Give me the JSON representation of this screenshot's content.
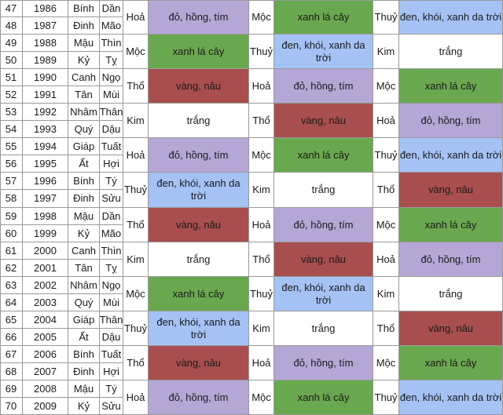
{
  "colors": {
    "do_hong_tim": "#b4a7d6",
    "xanh_la_cay": "#6aa84f",
    "den_khoi_xanh_da_troi": "#a4c2f4",
    "vang_nau": "#a84e4e",
    "trang": "#ffffff"
  },
  "rows": [
    {
      "no": "47",
      "year": "1986",
      "can": "Bính",
      "chi": "Dần"
    },
    {
      "no": "48",
      "year": "1987",
      "can": "Đinh",
      "chi": "Mão"
    },
    {
      "no": "49",
      "year": "1988",
      "can": "Mậu",
      "chi": "Thìn"
    },
    {
      "no": "50",
      "year": "1989",
      "can": "Kỷ",
      "chi": "Tỵ"
    },
    {
      "no": "51",
      "year": "1990",
      "can": "Canh",
      "chi": "Ngọ"
    },
    {
      "no": "52",
      "year": "1991",
      "can": "Tân",
      "chi": "Mùi"
    },
    {
      "no": "53",
      "year": "1992",
      "can": "Nhâm",
      "chi": "Thân"
    },
    {
      "no": "54",
      "year": "1993",
      "can": "Quý",
      "chi": "Dậu"
    },
    {
      "no": "55",
      "year": "1994",
      "can": "Giáp",
      "chi": "Tuất"
    },
    {
      "no": "56",
      "year": "1995",
      "can": "Ất",
      "chi": "Hợi"
    },
    {
      "no": "57",
      "year": "1996",
      "can": "Bính",
      "chi": "Tý"
    },
    {
      "no": "58",
      "year": "1997",
      "can": "Đinh",
      "chi": "Sửu"
    },
    {
      "no": "59",
      "year": "1998",
      "can": "Mậu",
      "chi": "Dần"
    },
    {
      "no": "60",
      "year": "1999",
      "can": "Kỷ",
      "chi": "Mão"
    },
    {
      "no": "61",
      "year": "2000",
      "can": "Canh",
      "chi": "Thìn"
    },
    {
      "no": "62",
      "year": "2001",
      "can": "Tân",
      "chi": "Tỵ"
    },
    {
      "no": "63",
      "year": "2002",
      "can": "Nhâm",
      "chi": "Ngọ"
    },
    {
      "no": "64",
      "year": "2003",
      "can": "Quý",
      "chi": "Mùi"
    },
    {
      "no": "65",
      "year": "2004",
      "can": "Giáp",
      "chi": "Thân"
    },
    {
      "no": "66",
      "year": "2005",
      "can": "Ất",
      "chi": "Dậu"
    },
    {
      "no": "67",
      "year": "2006",
      "can": "Bính",
      "chi": "Tuất"
    },
    {
      "no": "68",
      "year": "2007",
      "can": "Đinh",
      "chi": "Hợi"
    },
    {
      "no": "69",
      "year": "2008",
      "can": "Mậu",
      "chi": "Tý"
    },
    {
      "no": "70",
      "year": "2009",
      "can": "Kỷ",
      "chi": "Sửu"
    }
  ],
  "groups": [
    {
      "e1": "Hoả",
      "c1": "đỏ, hồng, tím",
      "k1": "do_hong_tim",
      "e2": "Mộc",
      "c2": "xanh lá cây",
      "k2": "xanh_la_cay",
      "e3": "Thuỷ",
      "c3": "đen, khói, xanh da trời",
      "k3": "den_khoi_xanh_da_troi"
    },
    {
      "e1": "Mộc",
      "c1": "xanh lá cây",
      "k1": "xanh_la_cay",
      "e2": "Thuỷ",
      "c2": "đen, khói, xanh da trời",
      "k2": "den_khoi_xanh_da_troi",
      "e3": "Kim",
      "c3": "trắng",
      "k3": "trang"
    },
    {
      "e1": "Thổ",
      "c1": "vàng, nâu",
      "k1": "vang_nau",
      "e2": "Hoả",
      "c2": "đỏ, hồng, tím",
      "k2": "do_hong_tim",
      "e3": "Mộc",
      "c3": "xanh lá cây",
      "k3": "xanh_la_cay"
    },
    {
      "e1": "Kim",
      "c1": "trắng",
      "k1": "trang",
      "e2": "Thổ",
      "c2": "vàng, nâu",
      "k2": "vang_nau",
      "e3": "Hoả",
      "c3": "đỏ, hồng, tím",
      "k3": "do_hong_tim"
    },
    {
      "e1": "Hoả",
      "c1": "đỏ, hồng, tím",
      "k1": "do_hong_tim",
      "e2": "Mộc",
      "c2": "xanh lá cây",
      "k2": "xanh_la_cay",
      "e3": "Thuỷ",
      "c3": "đen, khói, xanh da trời",
      "k3": "den_khoi_xanh_da_troi"
    },
    {
      "e1": "Thuỷ",
      "c1": "đen, khói, xanh da trời",
      "k1": "den_khoi_xanh_da_troi",
      "e2": "Kim",
      "c2": "trắng",
      "k2": "trang",
      "e3": "Thổ",
      "c3": "vàng, nâu",
      "k3": "vang_nau"
    },
    {
      "e1": "Thổ",
      "c1": "vàng, nâu",
      "k1": "vang_nau",
      "e2": "Hoả",
      "c2": "đỏ, hồng, tím",
      "k2": "do_hong_tim",
      "e3": "Mộc",
      "c3": "xanh lá cây",
      "k3": "xanh_la_cay"
    },
    {
      "e1": "Kim",
      "c1": "trắng",
      "k1": "trang",
      "e2": "Thổ",
      "c2": "vàng, nâu",
      "k2": "vang_nau",
      "e3": "Hoả",
      "c3": "đỏ, hồng, tím",
      "k3": "do_hong_tim"
    },
    {
      "e1": "Mộc",
      "c1": "xanh lá cây",
      "k1": "xanh_la_cay",
      "e2": "Thuỷ",
      "c2": "đen, khói, xanh da trời",
      "k2": "den_khoi_xanh_da_troi",
      "e3": "Kim",
      "c3": "trắng",
      "k3": "trang"
    },
    {
      "e1": "Thuỷ",
      "c1": "đen, khói, xanh da trời",
      "k1": "den_khoi_xanh_da_troi",
      "e2": "Kim",
      "c2": "trắng",
      "k2": "trang",
      "e3": "Thổ",
      "c3": "vàng, nâu",
      "k3": "vang_nau"
    },
    {
      "e1": "Thổ",
      "c1": "vàng, nâu",
      "k1": "vang_nau",
      "e2": "Hoả",
      "c2": "đỏ, hồng, tím",
      "k2": "do_hong_tim",
      "e3": "Mộc",
      "c3": "xanh lá cây",
      "k3": "xanh_la_cay"
    },
    {
      "e1": "Hoả",
      "c1": "đỏ, hồng, tím",
      "k1": "do_hong_tim",
      "e2": "Mộc",
      "c2": "xanh lá cây",
      "k2": "xanh_la_cay",
      "e3": "Thuỷ",
      "c3": "đen, khói, xanh da trời",
      "k3": "den_khoi_xanh_da_troi"
    }
  ]
}
